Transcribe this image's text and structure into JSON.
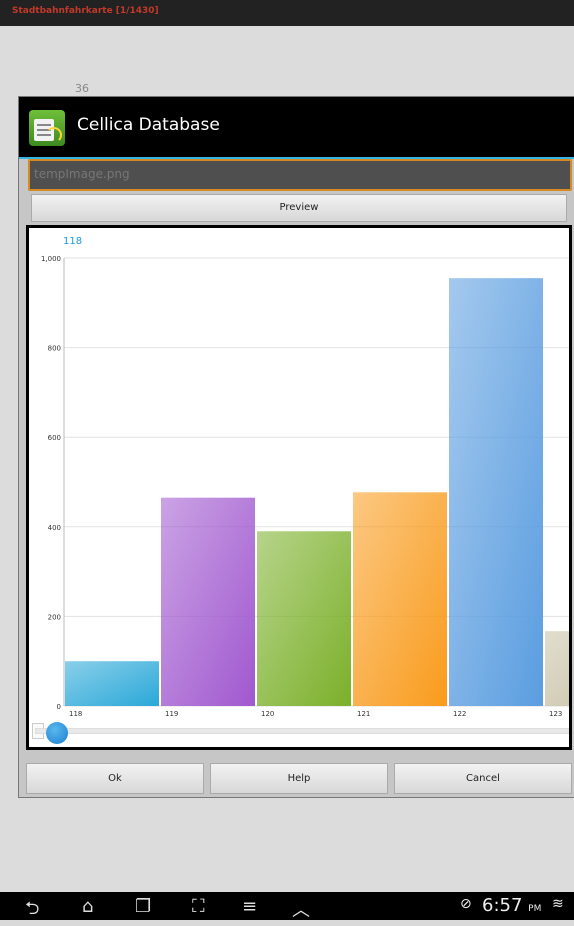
{
  "topbar": {
    "title": "Stadtbahnfahrkarte [1/1430]"
  },
  "background": {
    "field_value": "36"
  },
  "dialog": {
    "title": "Cellica Database",
    "filename_placeholder": "tempImage.png",
    "preview_label": "Preview",
    "selected_value": "118",
    "ok_label": "Ok",
    "help_label": "Help",
    "cancel_label": "Cancel"
  },
  "chart_data": {
    "type": "bar",
    "categories": [
      "118",
      "119",
      "120",
      "121",
      "122",
      "123"
    ],
    "values": [
      100,
      465,
      390,
      477,
      955,
      167
    ],
    "colors": [
      "#2aa8d8",
      "#a058cf",
      "#7bb02a",
      "#f99b1c",
      "#5a9de0",
      "#c9c2a7"
    ],
    "ylim": [
      0,
      1000
    ],
    "yticks": [
      0,
      200,
      400,
      600,
      800,
      1000
    ],
    "ytick_labels": [
      "0",
      "200",
      "400",
      "600",
      "800",
      "1,000"
    ],
    "grid": true
  },
  "navbar": {
    "time": "6:57",
    "ampm": "PM"
  }
}
